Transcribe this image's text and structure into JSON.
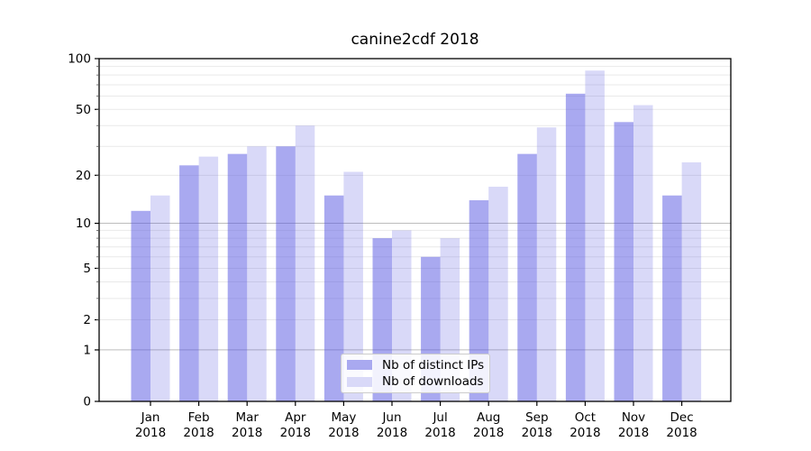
{
  "chart_data": {
    "type": "bar",
    "title": "canine2cdf 2018",
    "categories": [
      "Jan",
      "Feb",
      "Mar",
      "Apr",
      "May",
      "Jun",
      "Jul",
      "Aug",
      "Sep",
      "Oct",
      "Nov",
      "Dec"
    ],
    "category_year": "2018",
    "series": [
      {
        "name": "Nb of distinct IPs",
        "values": [
          12,
          23,
          27,
          30,
          15,
          8,
          6,
          14,
          27,
          62,
          42,
          15
        ],
        "fill_rgba": "rgba(84,84,225,0.5)",
        "legend_color": "#a9a9f0"
      },
      {
        "name": "Nb of downloads",
        "values": [
          15,
          26,
          30,
          40,
          21,
          9,
          8,
          17,
          39,
          85,
          53,
          24
        ],
        "fill_rgba": "rgba(84,84,225,0.22)",
        "legend_color": "#d9d9f8"
      }
    ],
    "yscale": "log1p",
    "ylim": [
      0,
      100
    ],
    "y_ticks": [
      0,
      1,
      2,
      5,
      10,
      20,
      50,
      100
    ],
    "grid": true,
    "grid_color_major": "#bdbdbd",
    "grid_color_minor": "#e9e9e9",
    "legend_position": "lower center",
    "xlabel": "",
    "ylabel": ""
  }
}
